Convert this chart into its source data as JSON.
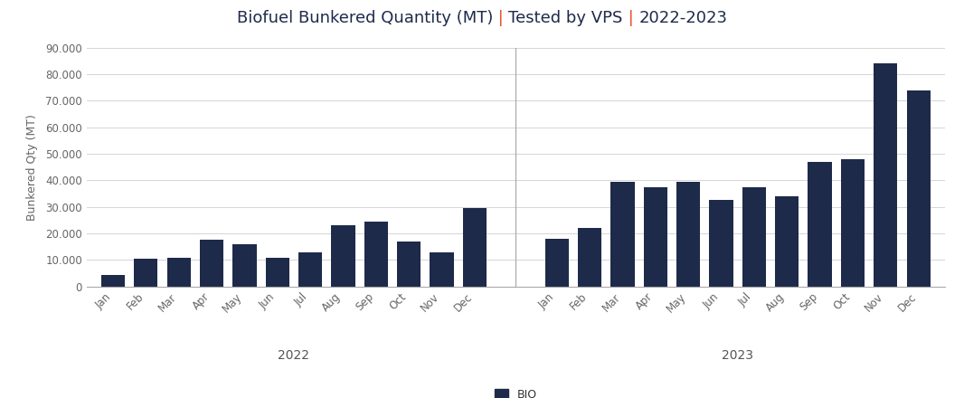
{
  "title_parts": [
    {
      "text": "Biofuel Bunkered Quantity (MT)",
      "color": "#1e2a4a"
    },
    {
      "text": " | ",
      "color": "#e8502a"
    },
    {
      "text": "Tested by VPS",
      "color": "#1e2a4a"
    },
    {
      "text": " | ",
      "color": "#e8502a"
    },
    {
      "text": "2022-2023",
      "color": "#1e2a4a"
    }
  ],
  "ylabel": "Bunkered Qty (MT)",
  "bar_color": "#1e2a4a",
  "legend_label": "BIO",
  "values_2022": [
    4500,
    10500,
    11000,
    17500,
    16000,
    11000,
    13000,
    23000,
    24500,
    17000,
    13000,
    29500
  ],
  "values_2023": [
    18000,
    22000,
    39500,
    37500,
    39500,
    32500,
    37500,
    34000,
    47000,
    48000,
    84000,
    74000
  ],
  "months": [
    "Jan",
    "Feb",
    "Mar",
    "Apr",
    "May",
    "Jun",
    "Jul",
    "Aug",
    "Sep",
    "Oct",
    "Nov",
    "Dec"
  ],
  "year_labels": [
    "2022",
    "2023"
  ],
  "ylim": [
    0,
    90000
  ],
  "yticks": [
    0,
    10000,
    20000,
    30000,
    40000,
    50000,
    60000,
    70000,
    80000,
    90000
  ],
  "background_color": "#ffffff",
  "grid_color": "#d5d5d5",
  "title_fontsize": 13,
  "axis_label_fontsize": 9,
  "tick_fontsize": 8.5,
  "year_label_fontsize": 10
}
